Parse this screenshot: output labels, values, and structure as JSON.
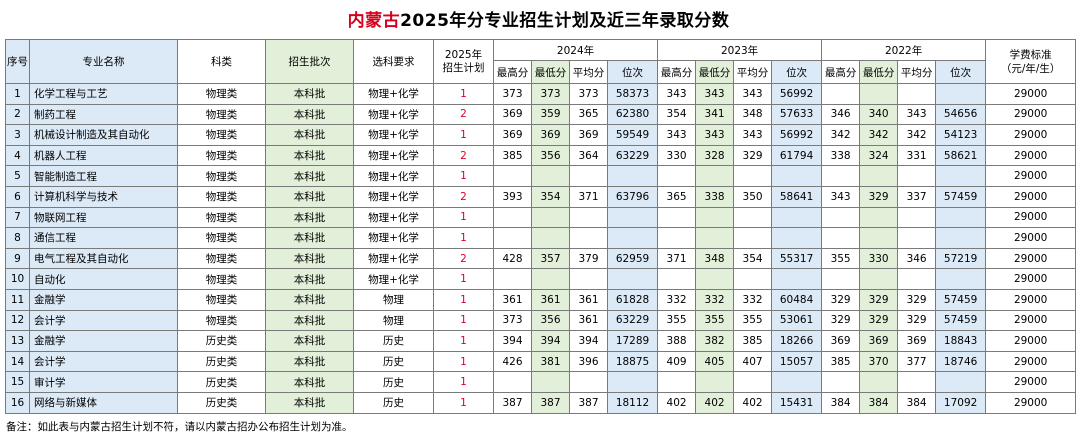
{
  "title_red": "内蒙古",
  "title_rest": "2025年分专业招生计划及近三年录取分数",
  "headers": {
    "seq": "序号",
    "major": "专业名称",
    "category": "科类",
    "batch": "招生批次",
    "subject": "选科要求",
    "plan_line1": "2025年",
    "plan_line2": "招生计划",
    "y2024": "2024年",
    "y2023": "2023年",
    "y2022": "2022年",
    "fee_line1": "学费标准",
    "fee_line2": "（元/年/生）",
    "max": "最高分",
    "min": "最低分",
    "avg": "平均分",
    "rank": "位次"
  },
  "rows": [
    {
      "seq": "1",
      "major": "化学工程与工艺",
      "category": "物理类",
      "batch": "本科批",
      "subject": "物理+化学",
      "plan": "1",
      "y24": [
        "373",
        "373",
        "373",
        "58373"
      ],
      "y23": [
        "343",
        "343",
        "343",
        "56992"
      ],
      "y22": [
        "",
        "",
        "",
        ""
      ],
      "fee": "29000"
    },
    {
      "seq": "2",
      "major": "制药工程",
      "category": "物理类",
      "batch": "本科批",
      "subject": "物理+化学",
      "plan": "2",
      "y24": [
        "369",
        "359",
        "365",
        "62380"
      ],
      "y23": [
        "354",
        "341",
        "348",
        "57633"
      ],
      "y22": [
        "346",
        "340",
        "343",
        "54656"
      ],
      "fee": "29000"
    },
    {
      "seq": "3",
      "major": "机械设计制造及其自动化",
      "category": "物理类",
      "batch": "本科批",
      "subject": "物理+化学",
      "plan": "1",
      "y24": [
        "369",
        "369",
        "369",
        "59549"
      ],
      "y23": [
        "343",
        "343",
        "343",
        "56992"
      ],
      "y22": [
        "342",
        "342",
        "342",
        "54123"
      ],
      "fee": "29000"
    },
    {
      "seq": "4",
      "major": "机器人工程",
      "category": "物理类",
      "batch": "本科批",
      "subject": "物理+化学",
      "plan": "2",
      "y24": [
        "385",
        "356",
        "364",
        "63229"
      ],
      "y23": [
        "330",
        "328",
        "329",
        "61794"
      ],
      "y22": [
        "338",
        "324",
        "331",
        "58621"
      ],
      "fee": "29000"
    },
    {
      "seq": "5",
      "major": "智能制造工程",
      "category": "物理类",
      "batch": "本科批",
      "subject": "物理+化学",
      "plan": "1",
      "y24": [
        "",
        "",
        "",
        ""
      ],
      "y23": [
        "",
        "",
        "",
        ""
      ],
      "y22": [
        "",
        "",
        "",
        ""
      ],
      "fee": "29000"
    },
    {
      "seq": "6",
      "major": "计算机科学与技术",
      "category": "物理类",
      "batch": "本科批",
      "subject": "物理+化学",
      "plan": "2",
      "y24": [
        "393",
        "354",
        "371",
        "63796"
      ],
      "y23": [
        "365",
        "338",
        "350",
        "58641"
      ],
      "y22": [
        "343",
        "329",
        "337",
        "57459"
      ],
      "fee": "29000"
    },
    {
      "seq": "7",
      "major": "物联网工程",
      "category": "物理类",
      "batch": "本科批",
      "subject": "物理+化学",
      "plan": "1",
      "y24": [
        "",
        "",
        "",
        ""
      ],
      "y23": [
        "",
        "",
        "",
        ""
      ],
      "y22": [
        "",
        "",
        "",
        ""
      ],
      "fee": "29000"
    },
    {
      "seq": "8",
      "major": "通信工程",
      "category": "物理类",
      "batch": "本科批",
      "subject": "物理+化学",
      "plan": "1",
      "y24": [
        "",
        "",
        "",
        ""
      ],
      "y23": [
        "",
        "",
        "",
        ""
      ],
      "y22": [
        "",
        "",
        "",
        ""
      ],
      "fee": "29000"
    },
    {
      "seq": "9",
      "major": "电气工程及其自动化",
      "category": "物理类",
      "batch": "本科批",
      "subject": "物理+化学",
      "plan": "2",
      "y24": [
        "428",
        "357",
        "379",
        "62959"
      ],
      "y23": [
        "371",
        "348",
        "354",
        "55317"
      ],
      "y22": [
        "355",
        "330",
        "346",
        "57219"
      ],
      "fee": "29000"
    },
    {
      "seq": "10",
      "major": "自动化",
      "category": "物理类",
      "batch": "本科批",
      "subject": "物理+化学",
      "plan": "1",
      "y24": [
        "",
        "",
        "",
        ""
      ],
      "y23": [
        "",
        "",
        "",
        ""
      ],
      "y22": [
        "",
        "",
        "",
        ""
      ],
      "fee": "29000"
    },
    {
      "seq": "11",
      "major": "金融学",
      "category": "物理类",
      "batch": "本科批",
      "subject": "物理",
      "plan": "1",
      "y24": [
        "361",
        "361",
        "361",
        "61828"
      ],
      "y23": [
        "332",
        "332",
        "332",
        "60484"
      ],
      "y22": [
        "329",
        "329",
        "329",
        "57459"
      ],
      "fee": "29000"
    },
    {
      "seq": "12",
      "major": "会计学",
      "category": "物理类",
      "batch": "本科批",
      "subject": "物理",
      "plan": "1",
      "y24": [
        "373",
        "356",
        "361",
        "63229"
      ],
      "y23": [
        "355",
        "355",
        "355",
        "53061"
      ],
      "y22": [
        "329",
        "329",
        "329",
        "57459"
      ],
      "fee": "29000"
    },
    {
      "seq": "13",
      "major": "金融学",
      "category": "历史类",
      "batch": "本科批",
      "subject": "历史",
      "plan": "1",
      "y24": [
        "394",
        "394",
        "394",
        "17289"
      ],
      "y23": [
        "388",
        "382",
        "385",
        "18266"
      ],
      "y22": [
        "369",
        "369",
        "369",
        "18843"
      ],
      "fee": "29000"
    },
    {
      "seq": "14",
      "major": "会计学",
      "category": "历史类",
      "batch": "本科批",
      "subject": "历史",
      "plan": "1",
      "y24": [
        "426",
        "381",
        "396",
        "18875"
      ],
      "y23": [
        "409",
        "405",
        "407",
        "15057"
      ],
      "y22": [
        "385",
        "370",
        "377",
        "18746"
      ],
      "fee": "29000"
    },
    {
      "seq": "15",
      "major": "审计学",
      "category": "历史类",
      "batch": "本科批",
      "subject": "历史",
      "plan": "1",
      "y24": [
        "",
        "",
        "",
        ""
      ],
      "y23": [
        "",
        "",
        "",
        ""
      ],
      "y22": [
        "",
        "",
        "",
        ""
      ],
      "fee": "29000"
    },
    {
      "seq": "16",
      "major": "网络与新媒体",
      "category": "历史类",
      "batch": "本科批",
      "subject": "历史",
      "plan": "1",
      "y24": [
        "387",
        "387",
        "387",
        "18112"
      ],
      "y23": [
        "402",
        "402",
        "402",
        "15431"
      ],
      "y22": [
        "384",
        "384",
        "384",
        "17092"
      ],
      "fee": "29000"
    }
  ],
  "note": "备注：如此表与内蒙古招生计划不符，请以内蒙古招办公布招生计划为准。",
  "colors": {
    "title_red": "#d6001c",
    "plan_red": "#e0002a",
    "blue_fill": "#dce9f7",
    "green_fill": "#e2efd9",
    "grid": "#7a7a7a"
  }
}
